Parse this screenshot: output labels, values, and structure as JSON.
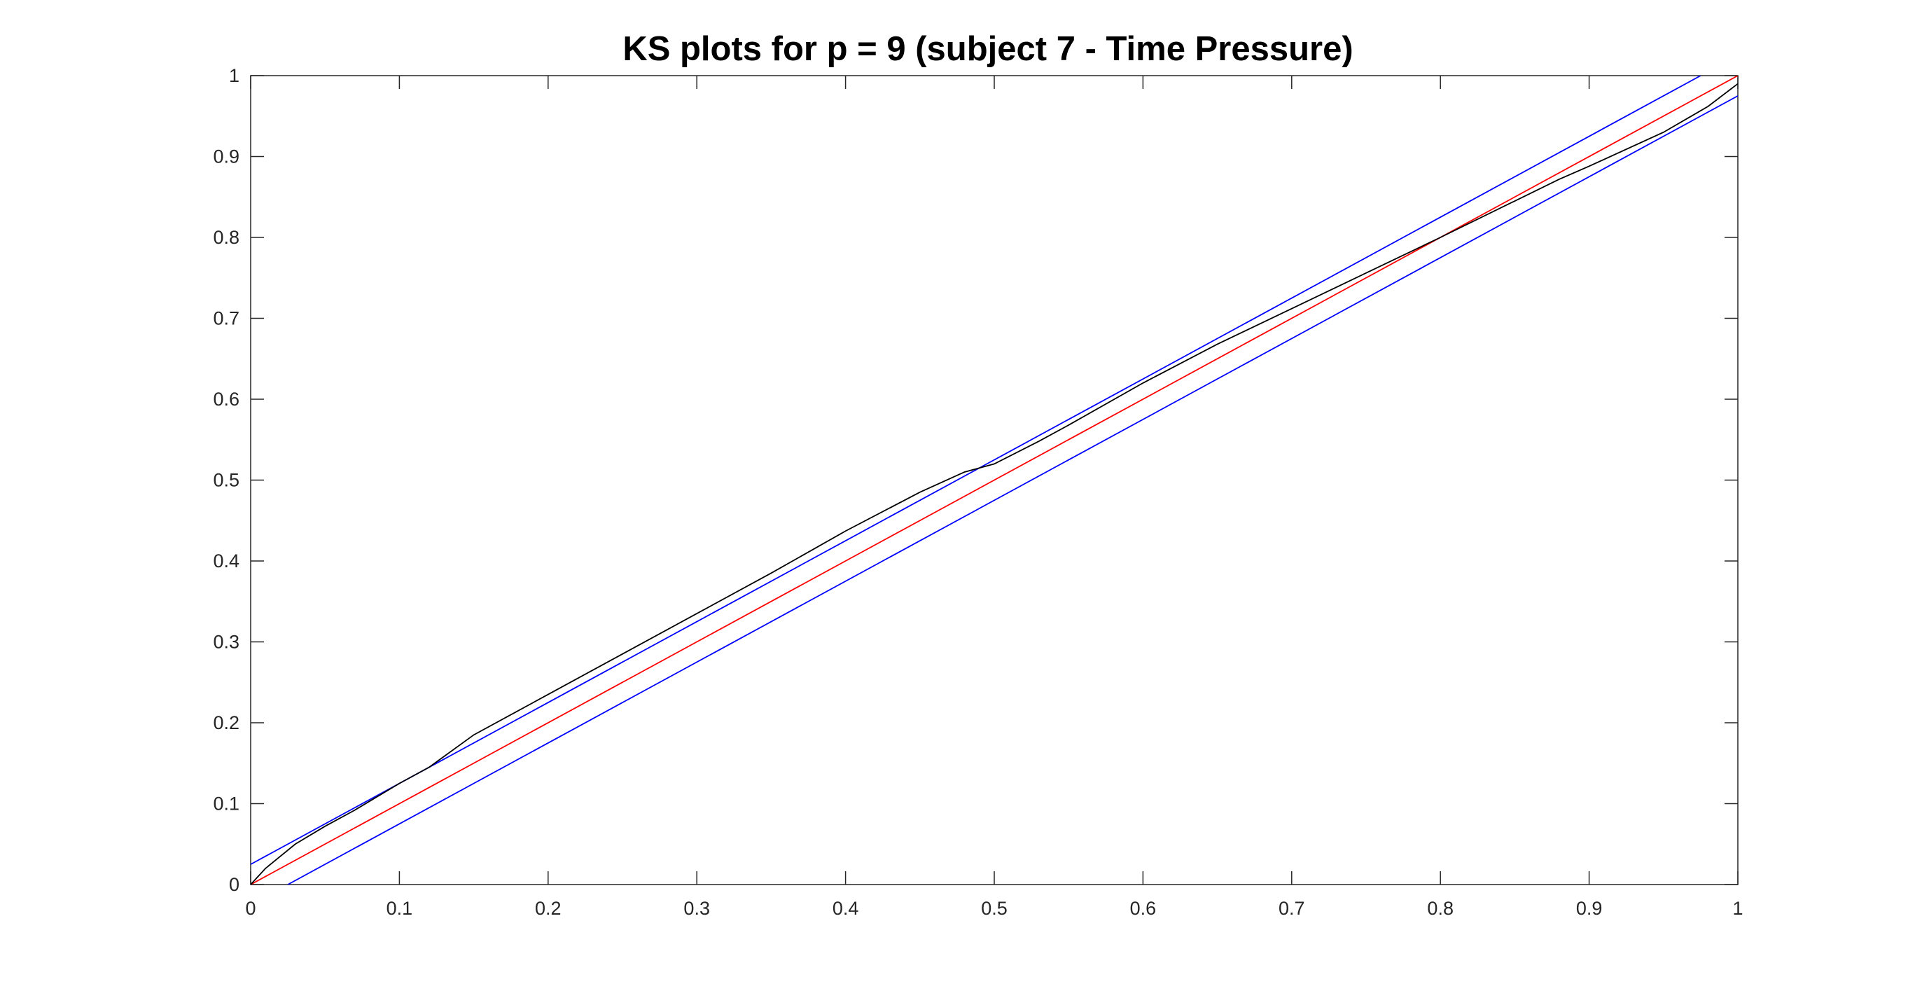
{
  "chart_data": {
    "type": "line",
    "title": "KS plots for p = 9 (subject 7 - Time Pressure)",
    "xlabel": "",
    "ylabel": "",
    "xlim": [
      0,
      1
    ],
    "ylim": [
      0,
      1
    ],
    "x_ticks": [
      0,
      0.1,
      0.2,
      0.3,
      0.4,
      0.5,
      0.6,
      0.7,
      0.8,
      0.9,
      1
    ],
    "x_tick_labels": [
      "0",
      "0.1",
      "0.2",
      "0.3",
      "0.4",
      "0.5",
      "0.6",
      "0.7",
      "0.8",
      "0.9",
      "1"
    ],
    "y_ticks": [
      0,
      0.1,
      0.2,
      0.3,
      0.4,
      0.5,
      0.6,
      0.7,
      0.8,
      0.9,
      1
    ],
    "y_tick_labels": [
      "0",
      "0.1",
      "0.2",
      "0.3",
      "0.4",
      "0.5",
      "0.6",
      "0.7",
      "0.8",
      "0.9",
      "1"
    ],
    "grid": false,
    "legend": "none",
    "series": [
      {
        "color": "#ff0000",
        "x": [
          0,
          1
        ],
        "y": [
          0,
          1
        ]
      },
      {
        "color": "#0000ff",
        "x": [
          0,
          0.975
        ],
        "y": [
          0.025,
          1
        ]
      },
      {
        "color": "#0000ff",
        "x": [
          0.025,
          1
        ],
        "y": [
          0,
          0.975
        ]
      },
      {
        "color": "#000000",
        "x": [
          0,
          0.01,
          0.02,
          0.03,
          0.05,
          0.07,
          0.1,
          0.12,
          0.15,
          0.2,
          0.25,
          0.3,
          0.35,
          0.4,
          0.45,
          0.48,
          0.5,
          0.53,
          0.55,
          0.6,
          0.65,
          0.7,
          0.75,
          0.8,
          0.85,
          0.88,
          0.9,
          0.95,
          0.98,
          1
        ],
        "y": [
          0,
          0.02,
          0.035,
          0.05,
          0.072,
          0.092,
          0.125,
          0.145,
          0.185,
          0.235,
          0.285,
          0.335,
          0.385,
          0.437,
          0.485,
          0.51,
          0.52,
          0.548,
          0.568,
          0.62,
          0.668,
          0.712,
          0.756,
          0.8,
          0.845,
          0.872,
          0.888,
          0.93,
          0.962,
          0.99
        ]
      }
    ]
  }
}
